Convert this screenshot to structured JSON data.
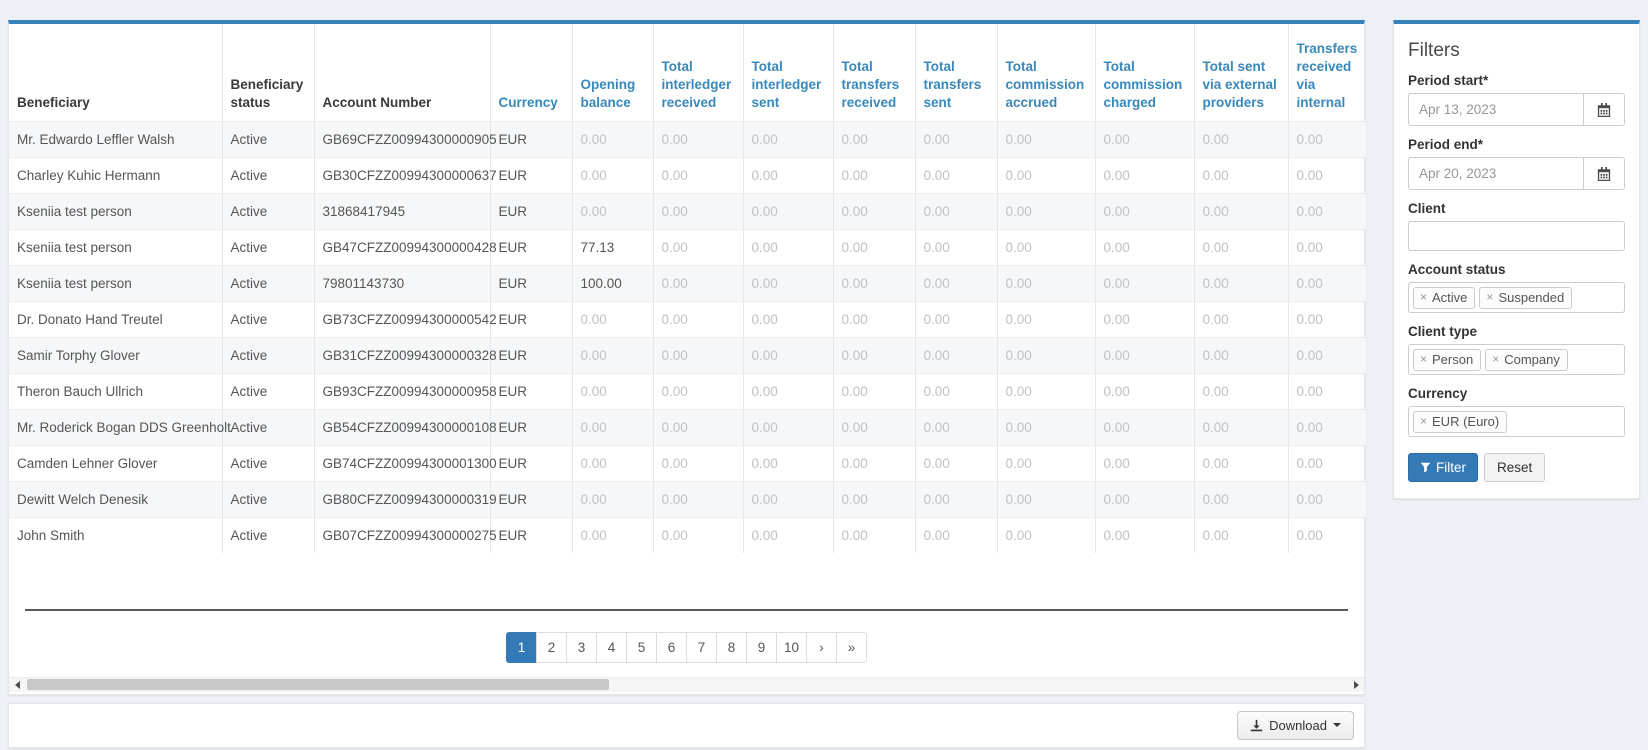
{
  "colors": {
    "accent": "#3583b8",
    "sortable_link": "#3888ba",
    "active_page_bg": "#337ab7"
  },
  "icons": {
    "calendar-icon": "▦",
    "funnel-icon": "⏷",
    "download-icon": "⭳",
    "caret-down-icon": "▾",
    "tag-remove-icon": "×",
    "scroll-left-icon": "◂",
    "scroll-right-icon": "▸"
  },
  "table": {
    "columns": [
      {
        "label": "Beneficiary",
        "sortable": false
      },
      {
        "label": "Beneficiary status",
        "sortable": false
      },
      {
        "label": "Account Number",
        "sortable": false
      },
      {
        "label": "Currency",
        "sortable": true
      },
      {
        "label": "Opening balance",
        "sortable": true
      },
      {
        "label": "Total interledger received",
        "sortable": true
      },
      {
        "label": "Total interledger sent",
        "sortable": true
      },
      {
        "label": "Total transfers received",
        "sortable": true
      },
      {
        "label": "Total transfers sent",
        "sortable": true
      },
      {
        "label": "Total commission accrued",
        "sortable": true
      },
      {
        "label": "Total commission charged",
        "sortable": true
      },
      {
        "label": "Total sent via external providers",
        "sortable": true
      },
      {
        "label": "Transfers received via internal",
        "sortable": true
      }
    ],
    "rows": [
      {
        "beneficiary": "Mr. Edwardo Leffler Walsh",
        "status": "Active",
        "account": "GB69CFZZ00994300000905",
        "currency": "EUR",
        "values": [
          "0.00",
          "0.00",
          "0.00",
          "0.00",
          "0.00",
          "0.00",
          "0.00",
          "0.00",
          "0.00"
        ]
      },
      {
        "beneficiary": "Charley Kuhic Hermann",
        "status": "Active",
        "account": "GB30CFZZ00994300000637",
        "currency": "EUR",
        "values": [
          "0.00",
          "0.00",
          "0.00",
          "0.00",
          "0.00",
          "0.00",
          "0.00",
          "0.00",
          "0.00"
        ]
      },
      {
        "beneficiary": "Kseniia test person",
        "status": "Active",
        "account": "31868417945",
        "currency": "EUR",
        "values": [
          "0.00",
          "0.00",
          "0.00",
          "0.00",
          "0.00",
          "0.00",
          "0.00",
          "0.00",
          "0.00"
        ]
      },
      {
        "beneficiary": "Kseniia test person",
        "status": "Active",
        "account": "GB47CFZZ00994300000428",
        "currency": "EUR",
        "values": [
          "77.13",
          "0.00",
          "0.00",
          "0.00",
          "0.00",
          "0.00",
          "0.00",
          "0.00",
          "0.00"
        ]
      },
      {
        "beneficiary": "Kseniia test person",
        "status": "Active",
        "account": "79801143730",
        "currency": "EUR",
        "values": [
          "100.00",
          "0.00",
          "0.00",
          "0.00",
          "0.00",
          "0.00",
          "0.00",
          "0.00",
          "0.00"
        ]
      },
      {
        "beneficiary": "Dr. Donato Hand Treutel",
        "status": "Active",
        "account": "GB73CFZZ00994300000542",
        "currency": "EUR",
        "values": [
          "0.00",
          "0.00",
          "0.00",
          "0.00",
          "0.00",
          "0.00",
          "0.00",
          "0.00",
          "0.00"
        ]
      },
      {
        "beneficiary": "Samir Torphy Glover",
        "status": "Active",
        "account": "GB31CFZZ00994300000328",
        "currency": "EUR",
        "values": [
          "0.00",
          "0.00",
          "0.00",
          "0.00",
          "0.00",
          "0.00",
          "0.00",
          "0.00",
          "0.00"
        ]
      },
      {
        "beneficiary": "Theron Bauch Ullrich",
        "status": "Active",
        "account": "GB93CFZZ00994300000958",
        "currency": "EUR",
        "values": [
          "0.00",
          "0.00",
          "0.00",
          "0.00",
          "0.00",
          "0.00",
          "0.00",
          "0.00",
          "0.00"
        ]
      },
      {
        "beneficiary": "Mr. Roderick Bogan DDS Greenholt",
        "status": "Active",
        "account": "GB54CFZZ00994300000108",
        "currency": "EUR",
        "values": [
          "0.00",
          "0.00",
          "0.00",
          "0.00",
          "0.00",
          "0.00",
          "0.00",
          "0.00",
          "0.00"
        ]
      },
      {
        "beneficiary": "Camden Lehner Glover",
        "status": "Active",
        "account": "GB74CFZZ00994300001300",
        "currency": "EUR",
        "values": [
          "0.00",
          "0.00",
          "0.00",
          "0.00",
          "0.00",
          "0.00",
          "0.00",
          "0.00",
          "0.00"
        ]
      },
      {
        "beneficiary": "Dewitt Welch Denesik",
        "status": "Active",
        "account": "GB80CFZZ00994300000319",
        "currency": "EUR",
        "values": [
          "0.00",
          "0.00",
          "0.00",
          "0.00",
          "0.00",
          "0.00",
          "0.00",
          "0.00",
          "0.00"
        ]
      },
      {
        "beneficiary": "John Smith",
        "status": "Active",
        "account": "GB07CFZZ00994300000275",
        "currency": "EUR",
        "values": [
          "0.00",
          "0.00",
          "0.00",
          "0.00",
          "0.00",
          "0.00",
          "0.00",
          "0.00",
          "0.00"
        ]
      }
    ]
  },
  "pagination": {
    "active": "1",
    "pages": [
      "1",
      "2",
      "3",
      "4",
      "5",
      "6",
      "7",
      "8",
      "9",
      "10",
      "›",
      "»"
    ]
  },
  "footer": {
    "download_label": "Download"
  },
  "filters": {
    "title": "Filters",
    "period_start": {
      "label": "Period start*",
      "value": "Apr 13, 2023"
    },
    "period_end": {
      "label": "Period end*",
      "value": "Apr 20, 2023"
    },
    "client": {
      "label": "Client",
      "value": ""
    },
    "account_status": {
      "label": "Account status",
      "tags": [
        "Active",
        "Suspended"
      ]
    },
    "client_type": {
      "label": "Client type",
      "tags": [
        "Person",
        "Company"
      ]
    },
    "currency": {
      "label": "Currency",
      "tags": [
        "EUR (Euro)"
      ]
    },
    "filter_button": "Filter",
    "reset_button": "Reset"
  }
}
